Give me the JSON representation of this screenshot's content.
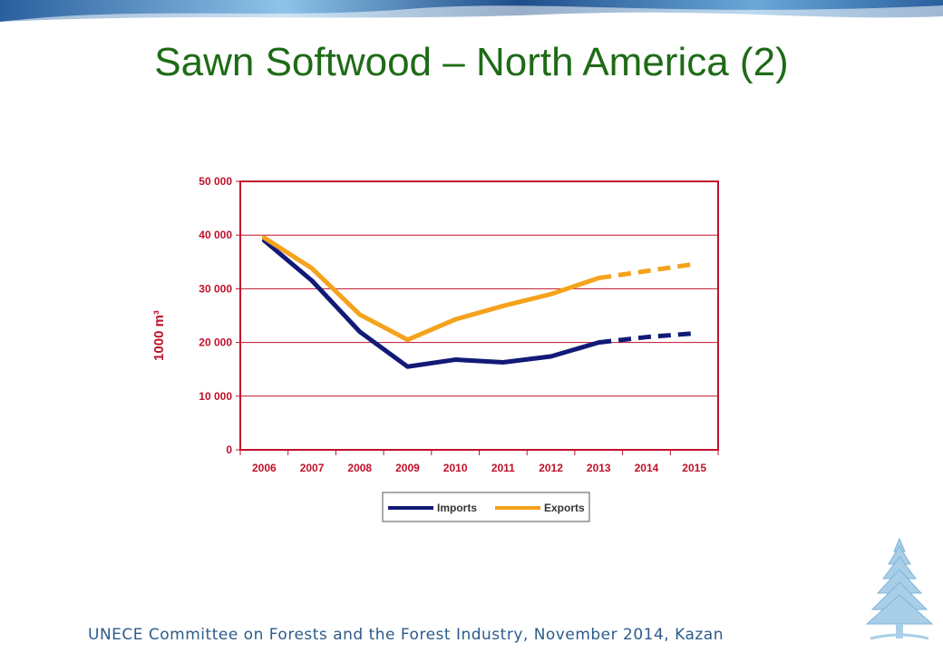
{
  "slide": {
    "title": "Sawn Softwood – North America (2)",
    "footer": "UNECE Committee on Forests and the Forest Industry, November 2014, Kazan"
  },
  "colors": {
    "title": "#1e6b16",
    "axis": "#c0102a",
    "imports": "#121a78",
    "exports": "#f5a21c",
    "footer": "#2c5b8c"
  },
  "chart_data": {
    "type": "line",
    "ylabel": "1000 m³",
    "xlabel": "",
    "title": "",
    "ylim": [
      0,
      50000
    ],
    "yticks": [
      0,
      10000,
      20000,
      30000,
      40000,
      50000
    ],
    "ytick_labels": [
      "0",
      "10 000",
      "20 000",
      "30 000",
      "40 000",
      "50 000"
    ],
    "categories": [
      "2006",
      "2007",
      "2008",
      "2009",
      "2010",
      "2011",
      "2012",
      "2013",
      "2014",
      "2015"
    ],
    "grid": true,
    "legend": "bottom-center",
    "series": [
      {
        "name": "Imports",
        "color": "#121a78",
        "values": [
          39000,
          31500,
          22000,
          15500,
          16800,
          16300,
          17400,
          20000,
          21000,
          21700
        ],
        "dashed_from": "2013"
      },
      {
        "name": "Exports",
        "color": "#f5a21c",
        "values": [
          39500,
          33800,
          25200,
          20500,
          24300,
          26800,
          29000,
          32000,
          33300,
          34600
        ],
        "dashed_from": "2013"
      }
    ]
  }
}
